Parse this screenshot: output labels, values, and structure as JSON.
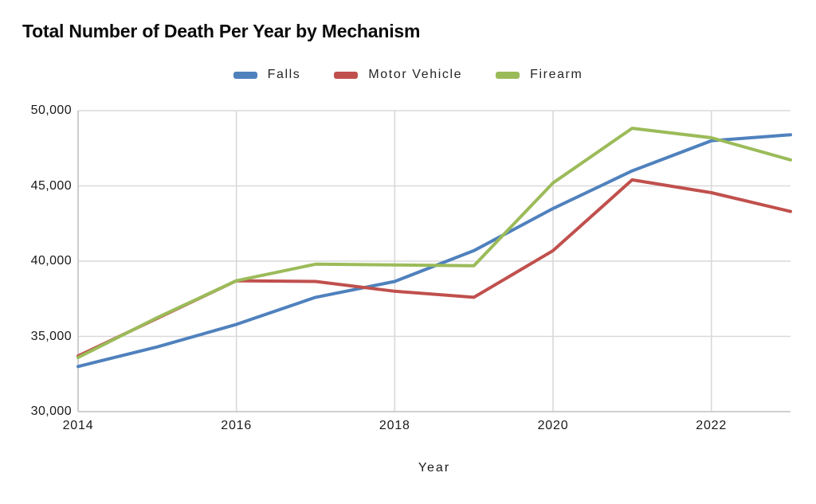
{
  "chart_data": {
    "type": "line",
    "title": "Total Number of Death Per Year by Mechanism",
    "xlabel": "Year",
    "ylabel": "",
    "x": [
      2014,
      2015,
      2016,
      2017,
      2018,
      2019,
      2020,
      2021,
      2022,
      2023
    ],
    "series": [
      {
        "name": "Falls",
        "color": "#4F81BD",
        "values": [
          33000,
          34300,
          35800,
          37600,
          38650,
          40700,
          43500,
          46000,
          48000,
          48400
        ]
      },
      {
        "name": "Motor Vehicle",
        "color": "#C0504D",
        "values": [
          33700,
          36200,
          38700,
          38650,
          38000,
          37600,
          40700,
          45400,
          44550,
          43300
        ]
      },
      {
        "name": "Firearm",
        "color": "#9BBB59",
        "values": [
          33600,
          36250,
          38700,
          39800,
          39750,
          39700,
          45200,
          48830,
          48200,
          46730
        ]
      }
    ],
    "xlim": [
      2014,
      2023
    ],
    "ylim": [
      30000,
      50000
    ],
    "x_ticks": [
      2014,
      2016,
      2018,
      2020,
      2022
    ],
    "y_ticks": [
      30000,
      35000,
      40000,
      45000,
      50000
    ],
    "grid": true,
    "legend_position": "top-center",
    "line_width": 4
  },
  "colors": {
    "background": "#FFFFFF",
    "gridline": "#D9D9D9",
    "axis_line": "#C6C6C6",
    "text": "#1A1A1A",
    "title_text": "#0A0A0A"
  }
}
